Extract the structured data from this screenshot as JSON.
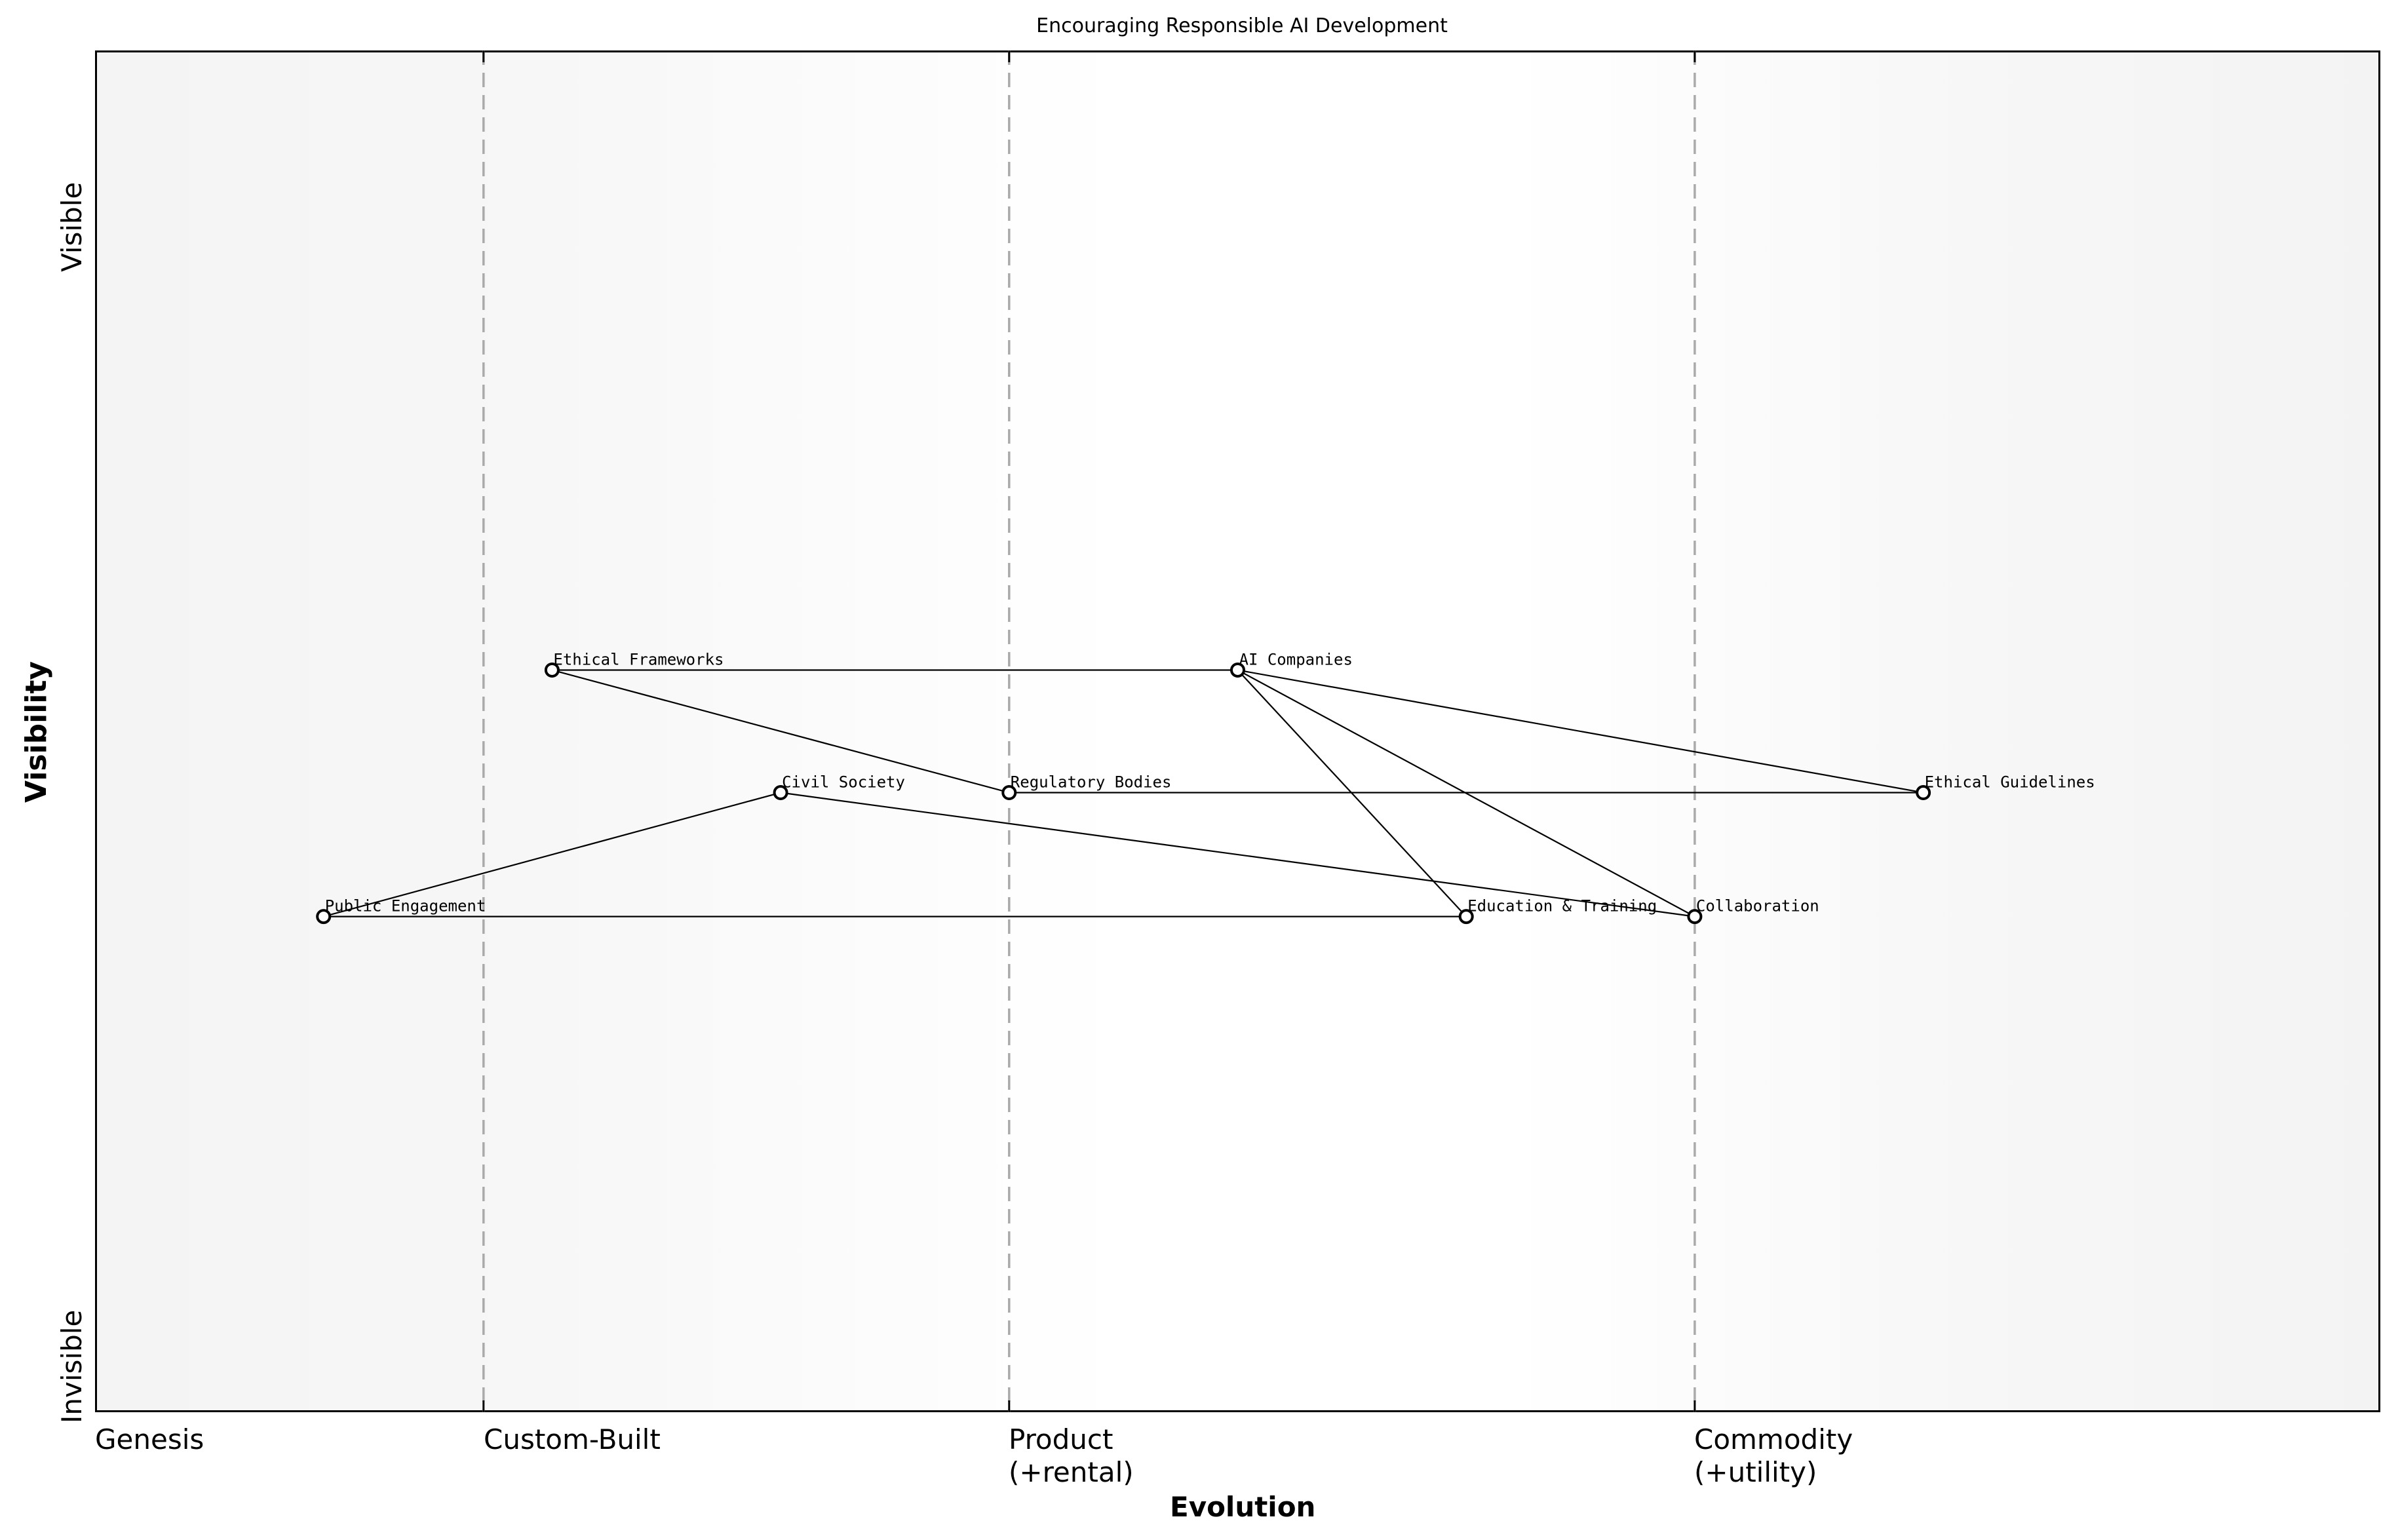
{
  "title": "Encouraging Responsible AI Development",
  "axes": {
    "x_label": "Evolution",
    "y_label": "Visibility",
    "y_top": "Visible",
    "y_bottom": "Invisible",
    "stages": [
      {
        "label": "Genesis",
        "x": 0.0
      },
      {
        "label": "Custom-Built",
        "x": 0.17
      },
      {
        "label": "Product\n(+rental)",
        "x": 0.4
      },
      {
        "label": "Commodity\n(+utility)",
        "x": 0.7
      }
    ]
  },
  "chart_data": {
    "type": "wardley-map",
    "title": "Encouraging Responsible AI Development",
    "xlabel": "Evolution",
    "ylabel": "Visibility",
    "xlim": [
      0,
      1
    ],
    "ylim": [
      0,
      1
    ],
    "x_ticks": [
      "Genesis",
      "Custom-Built",
      "Product (+rental)",
      "Commodity (+utility)"
    ],
    "y_ticks": [
      "Invisible",
      "Visible"
    ],
    "stage_dividers": [
      0.17,
      0.4,
      0.7
    ],
    "nodes": [
      {
        "name": "Ethical Frameworks",
        "x": 0.2,
        "y": 0.545
      },
      {
        "name": "AI Companies",
        "x": 0.5,
        "y": 0.545
      },
      {
        "name": "Civil Society",
        "x": 0.3,
        "y": 0.455
      },
      {
        "name": "Regulatory Bodies",
        "x": 0.4,
        "y": 0.455
      },
      {
        "name": "Ethical Guidelines",
        "x": 0.8,
        "y": 0.455
      },
      {
        "name": "Public Engagement",
        "x": 0.1,
        "y": 0.364
      },
      {
        "name": "Education & Training",
        "x": 0.6,
        "y": 0.364
      },
      {
        "name": "Collaboration",
        "x": 0.7,
        "y": 0.364
      }
    ],
    "edges": [
      [
        "Ethical Frameworks",
        "AI Companies"
      ],
      [
        "Ethical Frameworks",
        "Regulatory Bodies"
      ],
      [
        "AI Companies",
        "Ethical Guidelines"
      ],
      [
        "AI Companies",
        "Collaboration"
      ],
      [
        "AI Companies",
        "Education & Training"
      ],
      [
        "Regulatory Bodies",
        "Ethical Guidelines"
      ],
      [
        "Civil Society",
        "Public Engagement"
      ],
      [
        "Civil Society",
        "Collaboration"
      ],
      [
        "Public Engagement",
        "Education & Training"
      ]
    ]
  },
  "colors": {
    "divider": "#aaaaaa",
    "edge": "#000000",
    "node_fill": "#ffffff",
    "node_stroke": "#000000",
    "background_edge": "#f4f4f4",
    "background_center": "#ffffff"
  }
}
